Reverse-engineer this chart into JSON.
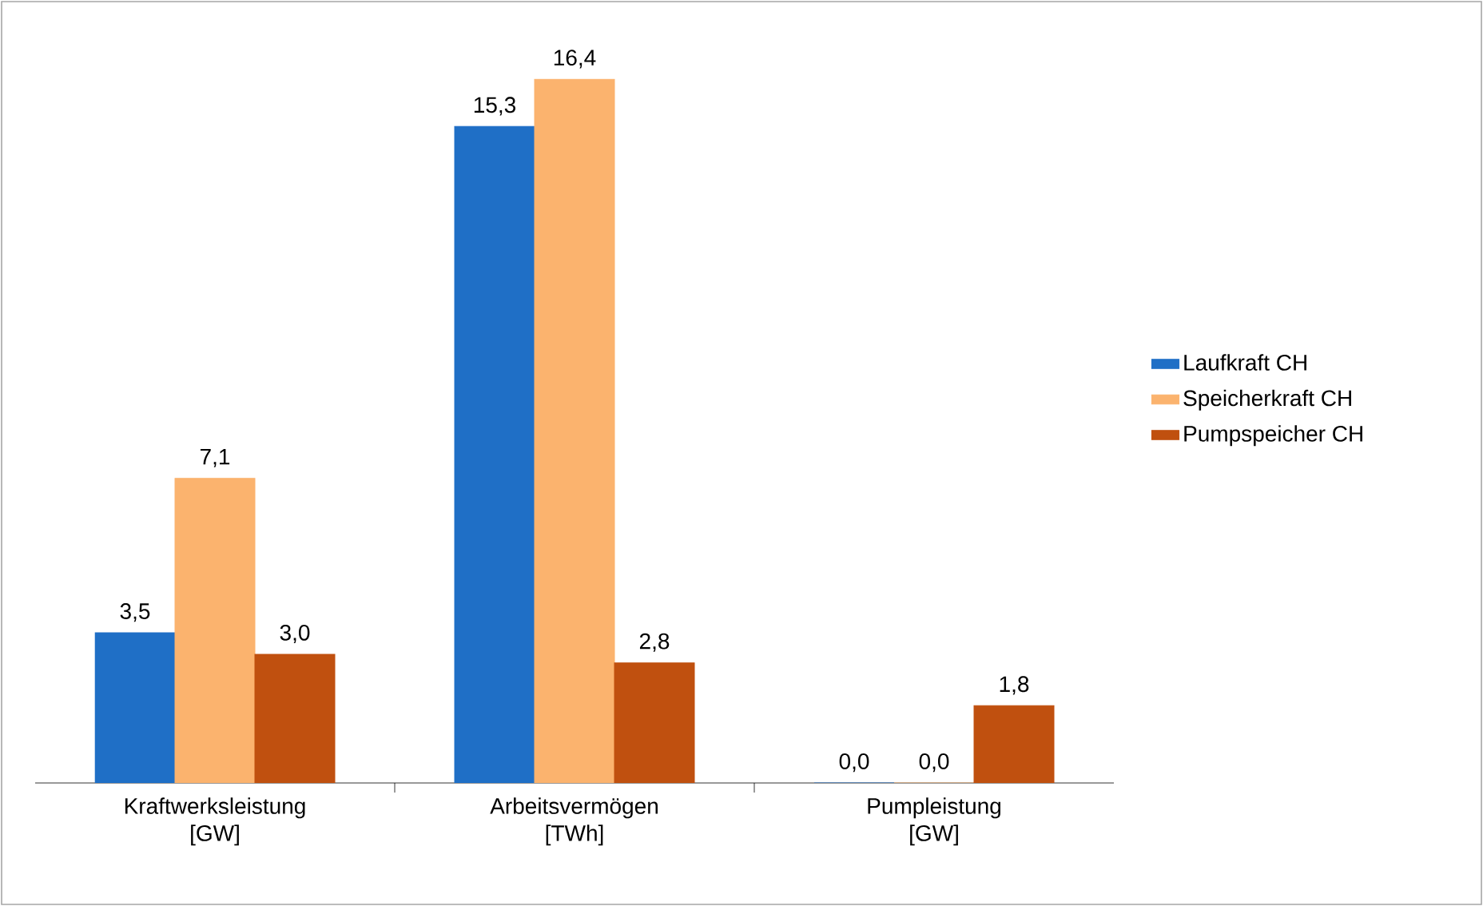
{
  "chart_data": {
    "type": "bar",
    "categories": [
      "Kraftwerksleistung [GW]",
      "Arbeitsvermögen [TWh]",
      "Pumpleistung [GW]"
    ],
    "series": [
      {
        "name": "Laufkraft CH",
        "color": "#1f6fc6",
        "values": [
          3.5,
          15.3,
          0.0
        ],
        "value_labels": [
          "3,5",
          "15,3",
          "0,0"
        ]
      },
      {
        "name": "Speicherkraft CH",
        "color": "#fbb36e",
        "values": [
          7.1,
          16.4,
          0.0
        ],
        "value_labels": [
          "7,1",
          "16,4",
          "0,0"
        ]
      },
      {
        "name": "Pumpspeicher CH",
        "color": "#c0500f",
        "values": [
          3.0,
          2.8,
          1.8
        ],
        "value_labels": [
          "3,0",
          "2,8",
          "1,8"
        ]
      }
    ],
    "legend": "right"
  }
}
